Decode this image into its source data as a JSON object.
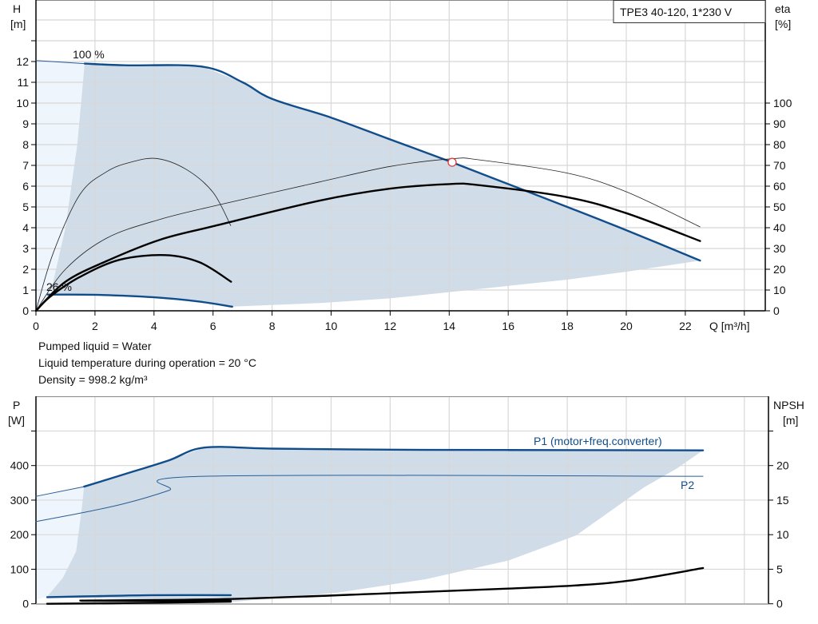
{
  "chart_data": [
    {
      "type": "line",
      "title": "TPE3 40-120, 1*230 V",
      "xlabel": "Q [m³/h]",
      "ylabel_left": [
        "H",
        "[m]"
      ],
      "ylabel_right": [
        "eta",
        "[%]"
      ],
      "xlim": [
        0,
        24.7
      ],
      "ylim_left": [
        0,
        15
      ],
      "ylim_right": [
        0,
        150
      ],
      "x_ticks": [
        0,
        2,
        4,
        6,
        8,
        10,
        12,
        14,
        16,
        18,
        20,
        22
      ],
      "y_ticks_left": [
        0,
        1,
        2,
        3,
        4,
        5,
        6,
        7,
        8,
        9,
        10,
        11,
        12
      ],
      "y_ticks_right": [
        0,
        10,
        20,
        30,
        40,
        50,
        60,
        70,
        80,
        90,
        100
      ],
      "grid": true,
      "operating_region_color": "#d0dce8",
      "extended_region_color": "#eef5fc",
      "line_color_blue": "#114d8a",
      "operating_region": [
        [
          1.65,
          11.9
        ],
        [
          3,
          11.82
        ],
        [
          5.65,
          11.75
        ],
        [
          7,
          11.0
        ],
        [
          8,
          10.2
        ],
        [
          10,
          9.3
        ],
        [
          12,
          8.25
        ],
        [
          14,
          7.2
        ],
        [
          16,
          6.1
        ],
        [
          18,
          5.0
        ],
        [
          20,
          3.88
        ],
        [
          22.5,
          2.42
        ],
        [
          20,
          1.88
        ],
        [
          18,
          1.5
        ],
        [
          15,
          1.05
        ],
        [
          12,
          0.6
        ],
        [
          9.7,
          0.38
        ],
        [
          6.65,
          0.2
        ],
        [
          5.5,
          0.45
        ],
        [
          4,
          0.65
        ],
        [
          2,
          0.77
        ],
        [
          0.5,
          0.78
        ],
        [
          0.6,
          1.5
        ],
        [
          1.0,
          4
        ],
        [
          1.4,
          8
        ],
        [
          1.65,
          11.9
        ]
      ],
      "extended_region": [
        [
          0,
          0
        ],
        [
          0,
          12.05
        ],
        [
          1.65,
          11.9
        ],
        [
          1.4,
          8
        ],
        [
          1.0,
          4
        ],
        [
          0.6,
          1.5
        ],
        [
          0.5,
          0.78
        ],
        [
          0.4,
          0.78
        ]
      ],
      "series": [
        {
          "name": "100 %",
          "axis": "left",
          "style": "blue-thick",
          "points": [
            [
              1.65,
              11.9
            ],
            [
              3,
              11.82
            ],
            [
              5.65,
              11.75
            ],
            [
              7,
              11.0
            ],
            [
              8,
              10.2
            ],
            [
              10,
              9.3
            ],
            [
              12,
              8.25
            ],
            [
              14,
              7.2
            ],
            [
              16,
              6.1
            ],
            [
              18,
              5.0
            ],
            [
              20,
              3.88
            ],
            [
              22.5,
              2.42
            ]
          ]
        },
        {
          "axis": "left",
          "style": "blue-thin",
          "points": [
            [
              0,
              12.05
            ],
            [
              1.65,
              11.9
            ]
          ]
        },
        {
          "name": "26 %",
          "axis": "left",
          "style": "blue-thick",
          "points": [
            [
              0.4,
              0.78
            ],
            [
              2,
              0.77
            ],
            [
              4,
              0.65
            ],
            [
              5.5,
              0.45
            ],
            [
              6.65,
              0.2
            ]
          ]
        },
        {
          "axis": "right",
          "style": "black-thin",
          "points": [
            [
              0,
              0
            ],
            [
              0.59,
              28
            ],
            [
              1.49,
              56
            ],
            [
              2.4,
              67
            ],
            [
              3.2,
              71.5
            ],
            [
              4.1,
              73.3
            ],
            [
              5.1,
              68
            ],
            [
              6.0,
              57
            ],
            [
              6.6,
              41
            ]
          ]
        },
        {
          "axis": "right",
          "style": "black-thick",
          "points": [
            [
              0,
              0
            ],
            [
              0.5,
              7
            ],
            [
              1.49,
              16.3
            ],
            [
              2.84,
              24.6
            ],
            [
              4.38,
              26.8
            ],
            [
              5.55,
              23.3
            ],
            [
              6.61,
              14
            ]
          ]
        },
        {
          "axis": "right",
          "style": "black-thin",
          "points": [
            [
              0,
              0
            ],
            [
              1,
              20
            ],
            [
              2.4,
              35
            ],
            [
              4.2,
              44
            ],
            [
              6.2,
              51
            ],
            [
              9.6,
              62
            ],
            [
              12,
              69.5
            ],
            [
              14.1,
              73.2
            ],
            [
              15,
              72.7
            ],
            [
              18,
              66.3
            ],
            [
              20,
              57.3
            ],
            [
              22.5,
              40.4
            ]
          ]
        },
        {
          "axis": "right",
          "style": "black-thick",
          "points": [
            [
              0,
              0
            ],
            [
              1,
              14
            ],
            [
              2.4,
              24
            ],
            [
              4.2,
              34.2
            ],
            [
              6,
              40.7
            ],
            [
              9.6,
              53
            ],
            [
              12,
              58.8
            ],
            [
              14,
              61
            ],
            [
              15,
              60.5
            ],
            [
              18,
              54.7
            ],
            [
              20,
              47
            ],
            [
              22.5,
              33.6
            ]
          ]
        }
      ],
      "duty_point": {
        "q": 14.1,
        "h": 7.15,
        "color": "#e03030"
      }
    },
    {
      "type": "line",
      "ylabel_left": [
        "P",
        "[W]"
      ],
      "ylabel_right": [
        "NPSH",
        "[m]"
      ],
      "xlim": [
        0,
        24.7
      ],
      "ylim_left": [
        0,
        600
      ],
      "ylim_right": [
        0,
        30
      ],
      "y_ticks_left": [
        0,
        100,
        200,
        300,
        400
      ],
      "y_ticks_right": [
        0,
        5,
        10,
        15,
        20
      ],
      "grid": true,
      "operating_region": [
        [
          1.63,
          339
        ],
        [
          3,
          375
        ],
        [
          4.5,
          415
        ],
        [
          5.7,
          452
        ],
        [
          8,
          449
        ],
        [
          12,
          446
        ],
        [
          16,
          445
        ],
        [
          22.6,
          444
        ],
        [
          21.7,
          391
        ],
        [
          20.6,
          337
        ],
        [
          18.3,
          198
        ],
        [
          16.0,
          125
        ],
        [
          13.2,
          71
        ],
        [
          10.2,
          32
        ],
        [
          6.6,
          5
        ],
        [
          0.38,
          21
        ],
        [
          0.91,
          75
        ],
        [
          1.36,
          152
        ],
        [
          1.54,
          267
        ],
        [
          1.63,
          339
        ]
      ],
      "extended_region": [
        [
          0,
          311
        ],
        [
          1.63,
          339
        ],
        [
          1.54,
          267
        ],
        [
          1.36,
          152
        ],
        [
          0.91,
          75
        ],
        [
          0.38,
          21
        ],
        [
          0,
          12
        ]
      ],
      "series": [
        {
          "name": "P1 (motor+freq.converter)",
          "axis": "left",
          "style": "blue-thick",
          "points": [
            [
              1.63,
              339
            ],
            [
              3,
              375
            ],
            [
              4.5,
              415
            ],
            [
              5.7,
              452
            ],
            [
              8,
              449
            ],
            [
              12,
              446
            ],
            [
              16,
              445
            ],
            [
              22.6,
              444
            ]
          ]
        },
        {
          "axis": "left",
          "style": "blue-thin",
          "points": [
            [
              0,
              311
            ],
            [
              1.63,
              339
            ]
          ]
        },
        {
          "name": "P2",
          "axis": "left",
          "style": "blue-thin",
          "points": [
            [
              0,
              238
            ],
            [
              1.6,
              264
            ],
            [
              3,
              290
            ],
            [
              4.5,
              328
            ],
            [
              5.7,
              369
            ],
            [
              22.6,
              369
            ]
          ]
        },
        {
          "axis": "left",
          "style": "blue-thick",
          "points": [
            [
              0.38,
              19
            ],
            [
              2,
              22
            ],
            [
              4,
              25
            ],
            [
              6.6,
              25
            ]
          ]
        },
        {
          "axis": "left",
          "style": "black-thick",
          "points": [
            [
              1.54,
              8.6
            ],
            [
              6.6,
              8.6
            ]
          ]
        },
        {
          "axis": "left",
          "style": "black-thick",
          "points": [
            [
              0.38,
              0
            ],
            [
              3,
              2
            ],
            [
              6.6,
              6
            ]
          ]
        },
        {
          "axis": "right",
          "style": "black-thick",
          "points": [
            [
              1.5,
              0.46
            ],
            [
              6.6,
              0.7
            ],
            [
              12.1,
              1.55
            ],
            [
              16,
              2.2
            ],
            [
              18.3,
              2.66
            ],
            [
              20.1,
              3.35
            ],
            [
              22.6,
              5.17
            ]
          ]
        }
      ]
    }
  ],
  "info": {
    "liquid": "Pumped liquid = Water",
    "temperature": "Liquid temperature during operation = 20 °C",
    "density": "Density = 998.2 kg/m³"
  }
}
